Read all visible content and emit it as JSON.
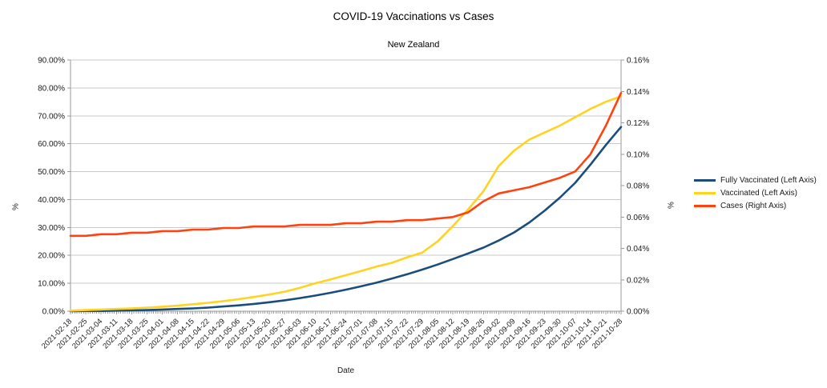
{
  "header": {
    "title": "COVID-19 Vaccinations vs Cases",
    "subtitle": "New Zealand"
  },
  "chart_data": {
    "type": "line",
    "title": "COVID-19 Vaccinations vs Cases",
    "subtitle": "New Zealand",
    "xlabel": "Date",
    "ylabel_left": "%",
    "ylabel_right": "%",
    "grid": "horizontal",
    "legend_position": "right",
    "x": [
      "2021-02-18",
      "2021-02-25",
      "2021-03-04",
      "2021-03-11",
      "2021-03-18",
      "2021-03-25",
      "2021-04-01",
      "2021-04-08",
      "2021-04-15",
      "2021-04-22",
      "2021-04-29",
      "2021-05-06",
      "2021-05-13",
      "2021-05-20",
      "2021-05-27",
      "2021-06-03",
      "2021-06-10",
      "2021-06-17",
      "2021-06-24",
      "2021-07-01",
      "2021-07-08",
      "2021-07-15",
      "2021-07-22",
      "2021-07-29",
      "2021-08-05",
      "2021-08-12",
      "2021-08-19",
      "2021-08-26",
      "2021-09-02",
      "2021-09-09",
      "2021-09-16",
      "2021-09-23",
      "2021-09-30",
      "2021-10-07",
      "2021-10-14",
      "2021-10-21",
      "2021-10-28"
    ],
    "left_axis": {
      "min": 0,
      "max": 90,
      "tick_step": 10,
      "tick_labels": [
        "0.00%",
        "10.00%",
        "20.00%",
        "30.00%",
        "40.00%",
        "50.00%",
        "60.00%",
        "70.00%",
        "80.00%",
        "90.00%"
      ]
    },
    "right_axis": {
      "min": 0,
      "max": 0.16,
      "tick_step": 0.02,
      "tick_labels": [
        "0.00%",
        "0.02%",
        "0.04%",
        "0.06%",
        "0.08%",
        "0.10%",
        "0.12%",
        "0.14%",
        "0.16%"
      ]
    },
    "series": [
      {
        "name": "Fully Vaccinated (Left Axis)",
        "axis": "left",
        "color": "#1A4D7C",
        "values": [
          0.0,
          0.1,
          0.1,
          0.2,
          0.3,
          0.4,
          0.6,
          0.8,
          1.0,
          1.3,
          1.7,
          2.1,
          2.6,
          3.2,
          3.9,
          4.7,
          5.6,
          6.6,
          7.7,
          8.9,
          10.2,
          11.7,
          13.2,
          14.9,
          16.7,
          18.7,
          20.7,
          22.8,
          25.3,
          28.2,
          31.8,
          36.0,
          40.7,
          46.0,
          52.5,
          59.5,
          66.0
        ]
      },
      {
        "name": "Vaccinated (Left Axis)",
        "axis": "left",
        "color": "#FFD320",
        "values": [
          0.2,
          0.4,
          0.6,
          0.8,
          1.0,
          1.3,
          1.6,
          2.0,
          2.5,
          3.0,
          3.6,
          4.3,
          5.1,
          6.0,
          7.0,
          8.4,
          10.0,
          11.4,
          12.9,
          14.4,
          16.0,
          17.3,
          19.3,
          21.0,
          25.0,
          30.5,
          36.5,
          43.0,
          52.0,
          57.5,
          61.5,
          64.0,
          66.5,
          69.5,
          72.5,
          75.0,
          77.0
        ]
      },
      {
        "name": "Cases (Right Axis)",
        "axis": "right",
        "color": "#FF420E",
        "values": [
          0.048,
          0.048,
          0.049,
          0.049,
          0.05,
          0.05,
          0.051,
          0.051,
          0.052,
          0.052,
          0.053,
          0.053,
          0.054,
          0.054,
          0.054,
          0.055,
          0.055,
          0.055,
          0.056,
          0.056,
          0.057,
          0.057,
          0.058,
          0.058,
          0.059,
          0.06,
          0.063,
          0.07,
          0.075,
          0.077,
          0.079,
          0.082,
          0.085,
          0.089,
          0.1,
          0.118,
          0.139
        ]
      }
    ]
  },
  "legend": {
    "items": [
      {
        "label": "Fully Vaccinated (Left Axis)"
      },
      {
        "label": "Vaccinated (Left Axis)"
      },
      {
        "label": "Cases (Right Axis)"
      }
    ]
  },
  "colors": {
    "grid": "#c9c9c9",
    "axis": "#9a9a9a",
    "text": "#1a1a1a"
  }
}
